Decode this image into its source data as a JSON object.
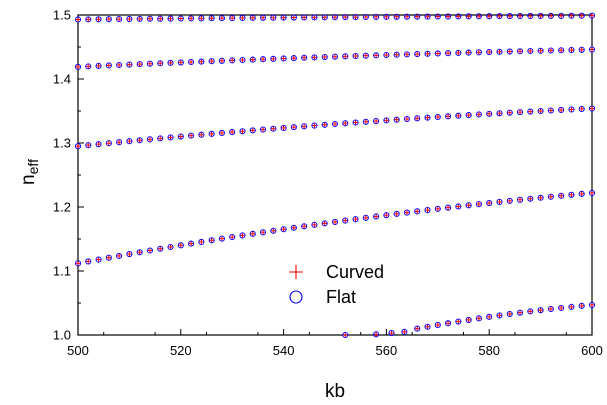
{
  "chart_data": {
    "type": "scatter",
    "xlabel": "kb",
    "ylabel": {
      "main": "n",
      "sub": "eff"
    },
    "xlim": [
      500,
      600
    ],
    "ylim": [
      1.0,
      1.5
    ],
    "x_ticks": [
      "500",
      "520",
      "540",
      "560",
      "580",
      "600"
    ],
    "y_ticks": [
      "1.0",
      "1.1",
      "1.2",
      "1.3",
      "1.4",
      "1.5"
    ],
    "grid": false,
    "legend_position": "center-bottom",
    "legend": {
      "curved": "Curved",
      "flat": "Flat"
    },
    "colors": {
      "curved": "#ff0000",
      "flat": "#0000ff",
      "axis": "#000000"
    },
    "branches": [
      {
        "x_start": 500,
        "x_end": 600,
        "y_start": 1.493,
        "y_end": 1.499,
        "step": 2
      },
      {
        "x_start": 500,
        "x_end": 600,
        "y_start": 1.419,
        "y_end": 1.446,
        "step": 2
      },
      {
        "x_start": 500,
        "x_end": 600,
        "y_start": 1.295,
        "y_end": 1.354,
        "step": 2
      },
      {
        "x_start": 500,
        "x_end": 600,
        "y_start": 1.112,
        "y_end": 1.222,
        "step": 2
      },
      {
        "x_start": 566,
        "x_end": 600,
        "y_start": 1.01,
        "y_end": 1.047,
        "step": 2,
        "extra_points": [
          [
            552,
            1.0
          ],
          [
            558,
            1.001
          ],
          [
            561,
            1.003
          ],
          [
            563.5,
            1.005
          ]
        ]
      }
    ]
  }
}
